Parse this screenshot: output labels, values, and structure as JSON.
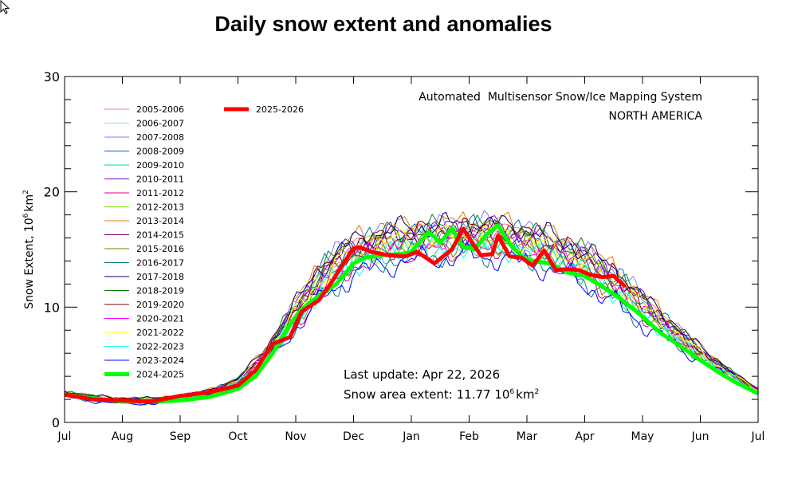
{
  "page": {
    "title": "Daily snow extent and anomalies"
  },
  "chart_data": {
    "type": "line",
    "title": "Daily snow extent and anomalies",
    "subtitle_lines": [
      "Automated  Multisensor Snow/Ice Mapping System",
      "NORTH AMERICA"
    ],
    "xlabel": "",
    "ylabel": "Snow Extent, 10⁶km²",
    "ylim": [
      0,
      30
    ],
    "yticks_major": [
      0,
      10,
      20,
      30
    ],
    "ytick_minor_step": 2,
    "x_tick_labels": [
      "Jul",
      "Aug",
      "Sep",
      "Oct",
      "Nov",
      "Dec",
      "Jan",
      "Feb",
      "Mar",
      "Apr",
      "May",
      "Jun",
      "Jul"
    ],
    "x_units": "months since Jul 1",
    "xlim": [
      0,
      12
    ],
    "grid": false,
    "legend_position": "top-left",
    "annotations": {
      "last_update": "Last update: Apr 22, 2026",
      "snow_area_prefix": "Snow area extent: 11.77 10",
      "snow_area_value": 11.77,
      "snow_area_units_sup1": "6",
      "snow_area_units_mid": "km",
      "snow_area_units_sup2": "2"
    },
    "climatology": {
      "x": [
        0,
        0.5,
        1,
        1.5,
        2,
        2.5,
        3,
        3.5,
        4,
        4.5,
        5,
        5.5,
        6,
        6.5,
        7,
        7.5,
        8,
        8.5,
        9,
        9.5,
        10,
        10.5,
        11,
        11.5,
        12
      ],
      "y": [
        2.5,
        2.1,
        1.9,
        1.9,
        2.1,
        2.6,
        3.6,
        6.0,
        9.5,
        12.8,
        14.6,
        15.4,
        15.8,
        16.0,
        16.2,
        16.1,
        15.6,
        14.9,
        13.8,
        12.2,
        10.0,
        8.0,
        6.0,
        4.3,
        2.7
      ]
    },
    "series": [
      {
        "name": "2005-2006",
        "color": "#ff7f7f",
        "width": "thin",
        "offset": 0.4
      },
      {
        "name": "2006-2007",
        "color": "#7fff7f",
        "width": "thin",
        "offset": -0.3
      },
      {
        "name": "2007-2008",
        "color": "#7f7fff",
        "width": "thin",
        "offset": 0.8
      },
      {
        "name": "2008-2009",
        "color": "#0066cc",
        "width": "thin",
        "offset": 0.5
      },
      {
        "name": "2009-2010",
        "color": "#00e08c",
        "width": "thin",
        "offset": -0.6
      },
      {
        "name": "2010-2011",
        "color": "#7f00cc",
        "width": "thin",
        "offset": 0.6
      },
      {
        "name": "2011-2012",
        "color": "#e0007f",
        "width": "thin",
        "offset": -0.9
      },
      {
        "name": "2012-2013",
        "color": "#80e000",
        "width": "thin",
        "offset": 0.2
      },
      {
        "name": "2013-2014",
        "color": "#e07f00",
        "width": "thin",
        "offset": 1.0
      },
      {
        "name": "2014-2015",
        "color": "#7f007f",
        "width": "thin",
        "offset": 0.3
      },
      {
        "name": "2015-2016",
        "color": "#7f7f00",
        "width": "thin",
        "offset": -0.4
      },
      {
        "name": "2016-2017",
        "color": "#007f7f",
        "width": "thin",
        "offset": -1.2
      },
      {
        "name": "2017-2018",
        "color": "#00007f",
        "width": "thin",
        "offset": 0.9
      },
      {
        "name": "2018-2019",
        "color": "#007f00",
        "width": "thin",
        "offset": 0.7
      },
      {
        "name": "2019-2020",
        "color": "#7f0000",
        "width": "thin",
        "offset": 0.5
      },
      {
        "name": "2020-2021",
        "color": "#ff00ff",
        "width": "thin",
        "offset": -0.2
      },
      {
        "name": "2021-2022",
        "color": "#ffff00",
        "width": "thin",
        "offset": 0.1
      },
      {
        "name": "2022-2023",
        "color": "#00ffff",
        "width": "thin",
        "offset": -0.7
      },
      {
        "name": "2023-2024",
        "color": "#0000ff",
        "width": "thin",
        "offset": -1.5
      },
      {
        "name": "2024-2025",
        "color": "#00ff00",
        "width": "thick",
        "x": [
          0,
          0.5,
          1,
          1.5,
          2,
          2.5,
          3,
          3.3,
          3.6,
          3.9,
          4.1,
          4.4,
          4.7,
          5.0,
          5.2,
          5.5,
          5.8,
          6.0,
          6.3,
          6.5,
          6.7,
          6.9,
          7.1,
          7.3,
          7.5,
          7.7,
          7.9,
          8.1,
          8.4,
          8.7,
          9.0,
          9.3,
          9.6,
          10.0,
          10.3,
          10.6,
          11.0,
          11.3,
          11.6,
          12.0
        ],
        "y": [
          2.4,
          2.1,
          1.8,
          1.8,
          1.9,
          2.2,
          2.9,
          4.0,
          6.0,
          8.5,
          9.8,
          11.0,
          12.0,
          13.8,
          14.3,
          14.5,
          14.6,
          14.8,
          16.5,
          15.6,
          16.8,
          15.2,
          15.0,
          16.3,
          17.1,
          15.5,
          14.4,
          14.0,
          13.8,
          13.0,
          12.7,
          11.8,
          10.8,
          9.2,
          7.8,
          6.8,
          5.4,
          4.4,
          3.5,
          2.5
        ]
      },
      {
        "name": "2025-2026",
        "color": "#ff0000",
        "width": "thick",
        "x": [
          0,
          0.5,
          1,
          1.5,
          2,
          2.5,
          3,
          3.3,
          3.6,
          3.9,
          4.1,
          4.4,
          4.6,
          4.8,
          5.0,
          5.1,
          5.3,
          5.6,
          5.9,
          6.1,
          6.4,
          6.7,
          6.9,
          7.0,
          7.2,
          7.4,
          7.5,
          7.7,
          7.9,
          8.1,
          8.3,
          8.5,
          8.7,
          8.9,
          9.1,
          9.3,
          9.5,
          9.7
        ],
        "y": [
          2.4,
          2.0,
          1.9,
          1.8,
          2.3,
          2.6,
          3.2,
          4.5,
          6.8,
          7.4,
          9.6,
          10.6,
          12.0,
          13.6,
          15.1,
          15.2,
          14.8,
          14.5,
          14.4,
          14.8,
          13.8,
          15.0,
          16.8,
          16.0,
          14.5,
          14.6,
          16.2,
          14.4,
          14.3,
          13.6,
          14.9,
          13.2,
          13.3,
          13.2,
          12.8,
          12.6,
          12.7,
          11.8
        ]
      }
    ]
  }
}
